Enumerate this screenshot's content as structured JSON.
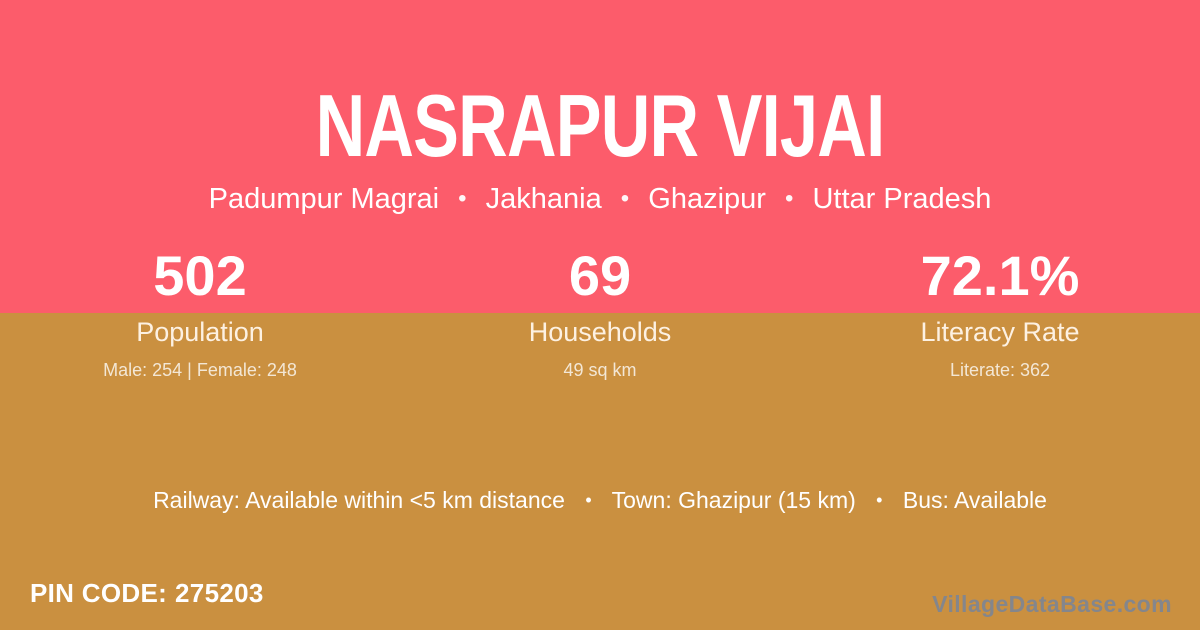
{
  "theme": {
    "top_background": "#fc5c6b",
    "bottom_background": "#ca9040",
    "title_color": "#ffffff",
    "label_color": "#fdf1e2",
    "detail_color": "rgba(255,255,255,0.78)",
    "watermark_color": "#84868c"
  },
  "header": {
    "title": "NASRAPUR VIJAI",
    "breadcrumb_parts": [
      "Padumpur Magrai",
      "Jakhania",
      "Ghazipur",
      "Uttar Pradesh"
    ],
    "separator": "•"
  },
  "stats": [
    {
      "value": "502",
      "label": "Population",
      "detail": "Male: 254 | Female: 248"
    },
    {
      "value": "69",
      "label": "Households",
      "detail": "49 sq km"
    },
    {
      "value": "72.1%",
      "label": "Literacy Rate",
      "detail": "Literate: 362"
    }
  ],
  "amenities": {
    "items": [
      "Railway: Available within <5 km distance",
      "Town: Ghazipur (15 km)",
      "Bus: Available"
    ],
    "separator": "•"
  },
  "footer": {
    "pin_label": "PIN CODE:",
    "pin_value": "275203",
    "watermark": "VillageDataBase.com"
  }
}
